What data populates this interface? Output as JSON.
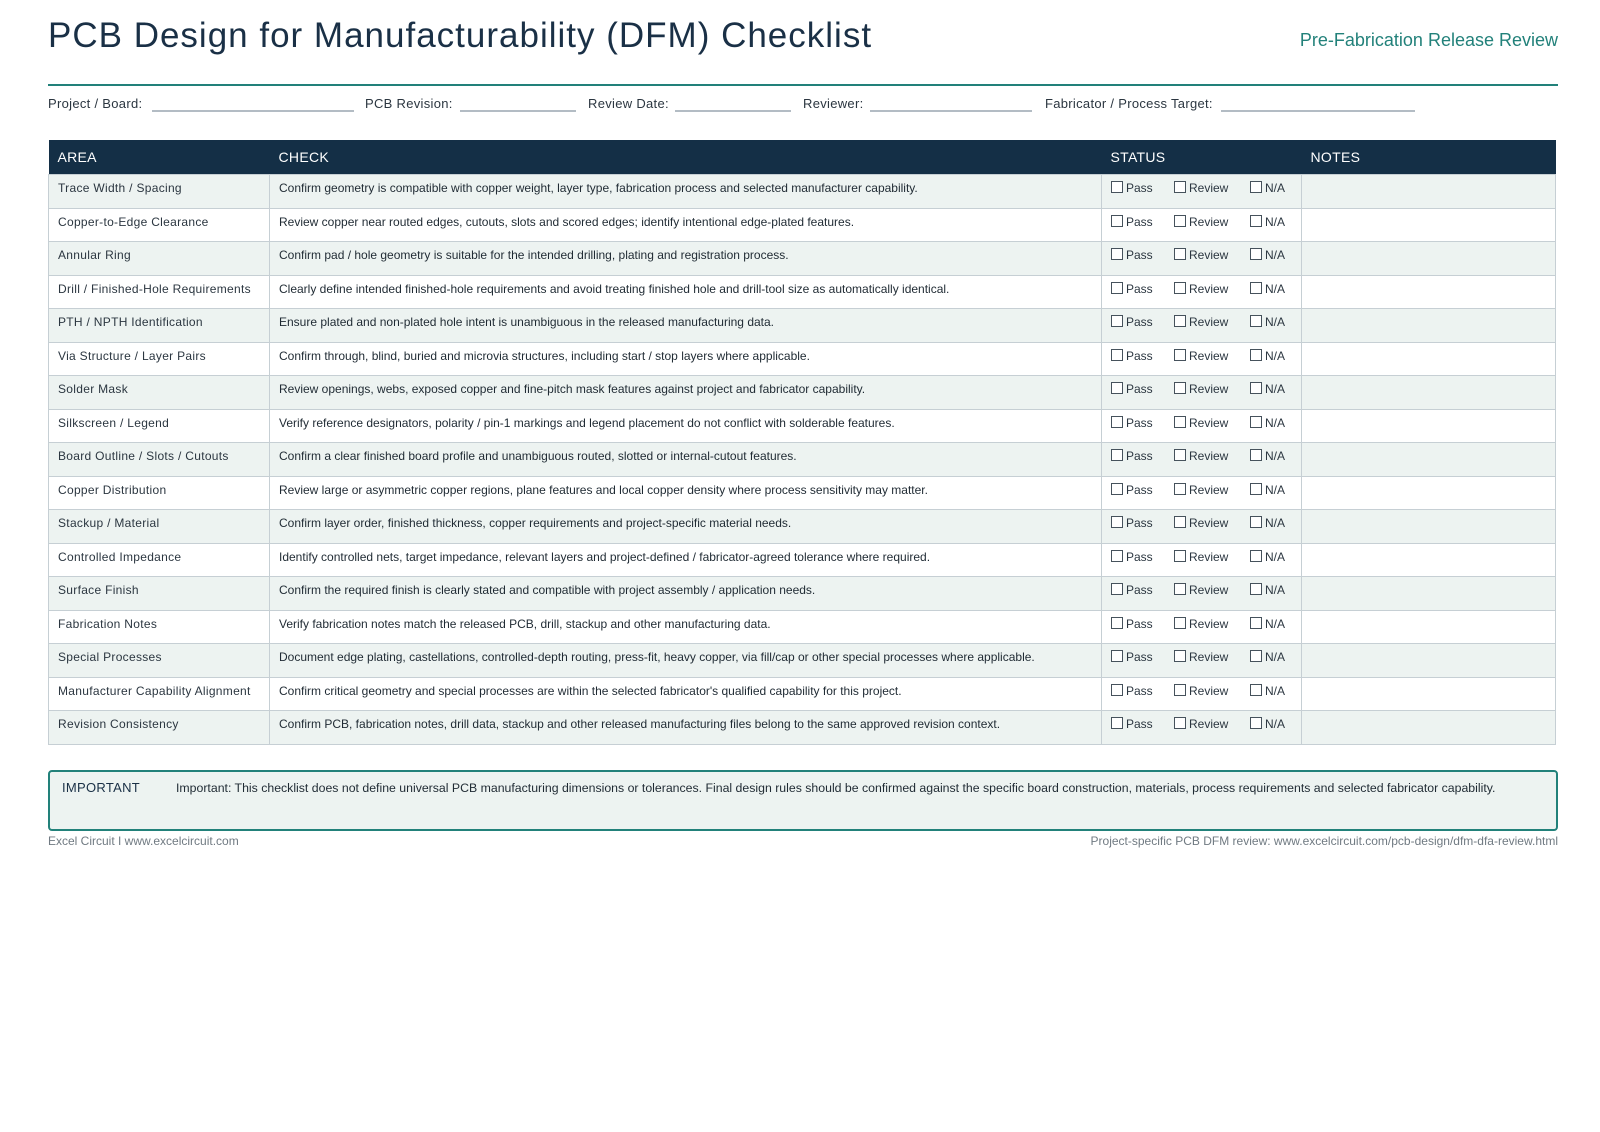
{
  "header": {
    "title": "PCB Design for Manufacturability (DFM) Checklist",
    "subtitle": "Pre-Fabrication Release Review"
  },
  "meta_fields": {
    "project": "Project / Board:",
    "revision": "PCB Revision:",
    "date": "Review Date:",
    "reviewer": "Reviewer:",
    "fabricator": "Fabricator / Process Target:"
  },
  "table": {
    "headers": {
      "area": "AREA",
      "check": "CHECK",
      "status": "STATUS",
      "notes": "NOTES"
    },
    "status_options": {
      "pass": "Pass",
      "review": "Review",
      "na": "N/A"
    },
    "rows": [
      {
        "area": "Trace Width / Spacing",
        "check": "Confirm geometry is compatible with copper weight, layer type, fabrication process and selected manufacturer capability."
      },
      {
        "area": "Copper-to-Edge Clearance",
        "check": "Review copper near routed edges, cutouts, slots and scored edges; identify intentional edge-plated features."
      },
      {
        "area": "Annular Ring",
        "check": "Confirm pad / hole geometry is suitable for the intended drilling, plating and registration process."
      },
      {
        "area": "Drill / Finished-Hole Requirements",
        "check": "Clearly define intended finished-hole requirements and avoid treating finished hole and drill-tool size as automatically identical."
      },
      {
        "area": "PTH / NPTH Identification",
        "check": "Ensure plated and non-plated hole intent is unambiguous in the released manufacturing data."
      },
      {
        "area": "Via Structure / Layer Pairs",
        "check": "Confirm through, blind, buried and microvia structures, including start / stop layers where applicable."
      },
      {
        "area": "Solder Mask",
        "check": "Review openings, webs, exposed copper and fine-pitch mask features against project and fabricator capability."
      },
      {
        "area": "Silkscreen / Legend",
        "check": "Verify reference designators, polarity / pin-1 markings and legend placement do not conflict with solderable features."
      },
      {
        "area": "Board Outline / Slots / Cutouts",
        "check": "Confirm a clear finished board profile and unambiguous routed, slotted or internal-cutout features."
      },
      {
        "area": "Copper Distribution",
        "check": "Review large or asymmetric copper regions, plane features and local copper density where process sensitivity may matter."
      },
      {
        "area": "Stackup / Material",
        "check": "Confirm layer order, finished thickness, copper requirements and project-specific material needs."
      },
      {
        "area": "Controlled Impedance",
        "check": "Identify controlled nets, target impedance, relevant layers and project-defined / fabricator-agreed tolerance where required."
      },
      {
        "area": "Surface Finish",
        "check": "Confirm the required finish is clearly stated and compatible with project assembly / application needs."
      },
      {
        "area": "Fabrication Notes",
        "check": "Verify fabrication notes match the released PCB, drill, stackup and other manufacturing data."
      },
      {
        "area": "Special Processes",
        "check": "Document edge plating, castellations, controlled-depth routing, press-fit, heavy copper, via fill/cap or other special processes where applicable."
      },
      {
        "area": "Manufacturer Capability Alignment",
        "check": "Confirm critical geometry and special processes are within the selected fabricator's qualified capability for this project."
      },
      {
        "area": "Revision Consistency",
        "check": "Confirm PCB, fabrication notes, drill data, stackup and other released manufacturing files belong to the same approved revision context."
      }
    ]
  },
  "important": {
    "tag": "IMPORTANT",
    "message": "Important: This checklist does not define universal PCB manufacturing dimensions or tolerances. Final design rules should be confirmed against the specific board construction, materials, process requirements and selected fabricator capability."
  },
  "footer": {
    "left": "Excel Circuit  I  www.excelcircuit.com",
    "right": "Project-specific PCB DFM review: www.excelcircuit.com/pcb-design/dfm-dfa-review.html"
  },
  "colors": {
    "accent": "#22817a",
    "header_bg": "#142f46",
    "title": "#1a3046",
    "row_alt": "#edf3f1"
  }
}
